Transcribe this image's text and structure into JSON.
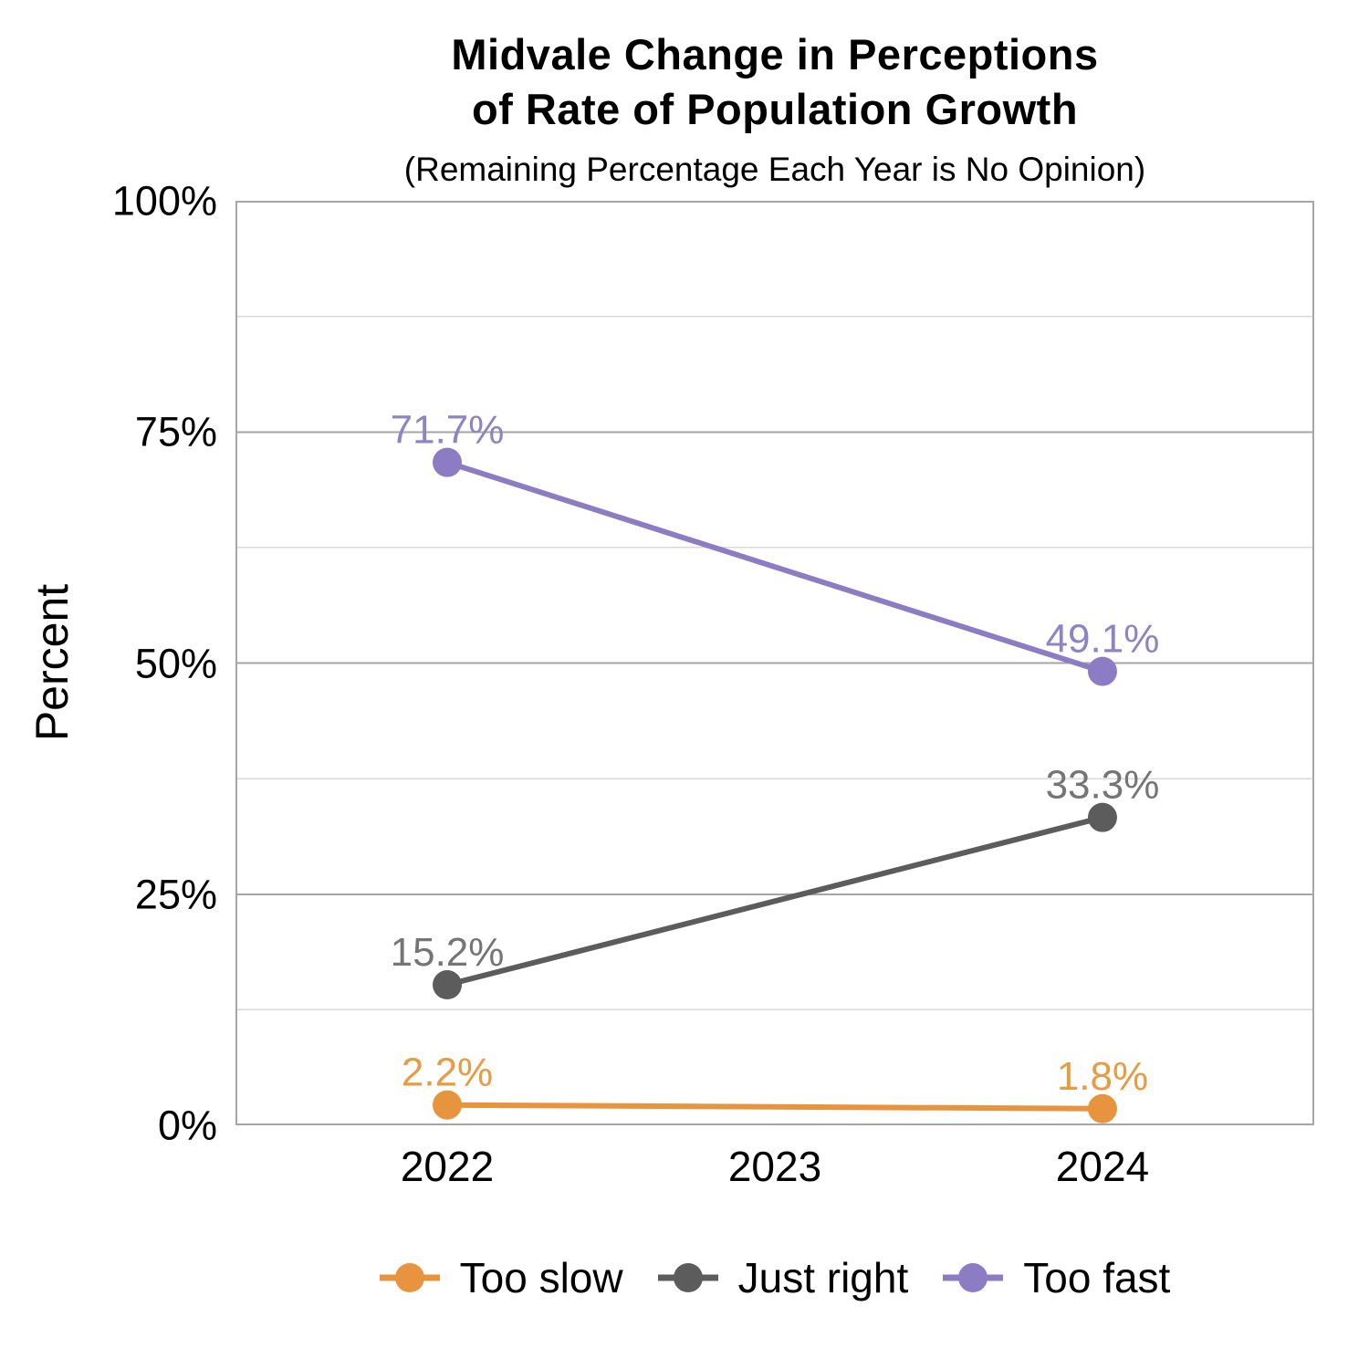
{
  "header": {
    "title_line1": "Midvale Change in Perceptions",
    "title_line2": "of Rate of Population Growth",
    "subtitle": "(Remaining Percentage Each Year is No Opinion)"
  },
  "chart_data": {
    "type": "line",
    "title": "Midvale Change in Perceptions of Rate of Population Growth",
    "subtitle": "(Remaining Percentage Each Year is No Opinion)",
    "xlabel": "",
    "ylabel": "Percent",
    "x_categories": [
      "2022",
      "2023",
      "2024"
    ],
    "ylim": [
      0,
      100
    ],
    "yticks": [
      0,
      25,
      50,
      75,
      100
    ],
    "ytick_labels": [
      "0%",
      "25%",
      "50%",
      "75%",
      "100%"
    ],
    "minor_gridline_step_pct": 12.5,
    "grid": "horizontal",
    "legend_position": "bottom",
    "series": [
      {
        "name": "Too slow",
        "color": "#E8933D",
        "label_color": "#EA9A41",
        "x": [
          "2022",
          "2024"
        ],
        "values": [
          2.2,
          1.8
        ],
        "point_labels": [
          "2.2%",
          "1.8%"
        ]
      },
      {
        "name": "Just right",
        "color": "#5C5C5C",
        "label_color": "#757575",
        "x": [
          "2022",
          "2024"
        ],
        "values": [
          15.2,
          33.3
        ],
        "point_labels": [
          "15.2%",
          "33.3%"
        ]
      },
      {
        "name": "Too fast",
        "color": "#8C7CC3",
        "label_color": "#9083C5",
        "x": [
          "2022",
          "2024"
        ],
        "values": [
          71.7,
          49.1
        ],
        "point_labels": [
          "71.7%",
          "49.1%"
        ]
      }
    ],
    "grid_colors": {
      "major": "#A6A6A6",
      "minor": "#D9D9D9",
      "border": "#A6A6A6"
    }
  }
}
